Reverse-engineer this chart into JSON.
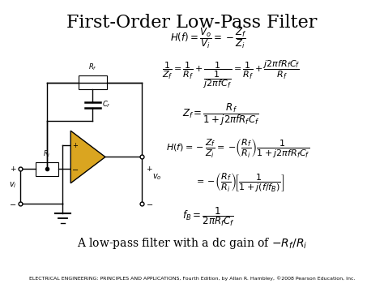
{
  "title": "First-Order Low-Pass Filter",
  "title_fontsize": 16,
  "bg_color": "#ffffff",
  "eq1": "$H(f) = \\dfrac{V_o}{V_i} = -\\dfrac{Z_f}{Z_i}$",
  "eq2_left": "$\\dfrac{1}{Z_f} = \\dfrac{1}{R_f} + \\dfrac{\\quad 1 \\quad}{\\dfrac{1}{j2\\pi f C_f}} = \\dfrac{1}{R_f} + \\dfrac{j2\\pi f R_f C_f}{R_f}$",
  "eq3": "$Z_f = \\dfrac{R_f}{1 + j2\\pi f R_f C_f}$",
  "eq4": "$H(f) = -\\dfrac{Z_f}{Z_i} = -\\!\\left(\\dfrac{R_f}{R_i}\\right)\\dfrac{1}{1 + j2\\pi f R_f C_f}$",
  "eq5": "$= -\\!\\left(\\dfrac{R_f}{R_i}\\right)\\!\\left[\\dfrac{1}{1 + j(f / f_B)}\\right]$",
  "eq6": "$f_B = \\dfrac{1}{2\\pi R_f C_f}$",
  "caption": "A low-pass filter with a dc gain of $-R_f/R_i$",
  "caption_fontsize": 10,
  "footer": "ELECTRICAL ENGINEERING: PRINCIPLES AND APPLICATIONS, Fourth Edition, by Allan R. Hambley, ©2008 Pearson Education, Inc.",
  "footer_fontsize": 4.5,
  "eq_fontsize": 8.5,
  "circuit_bg": "#d0cfc0",
  "opamp_color": "#DAA520"
}
